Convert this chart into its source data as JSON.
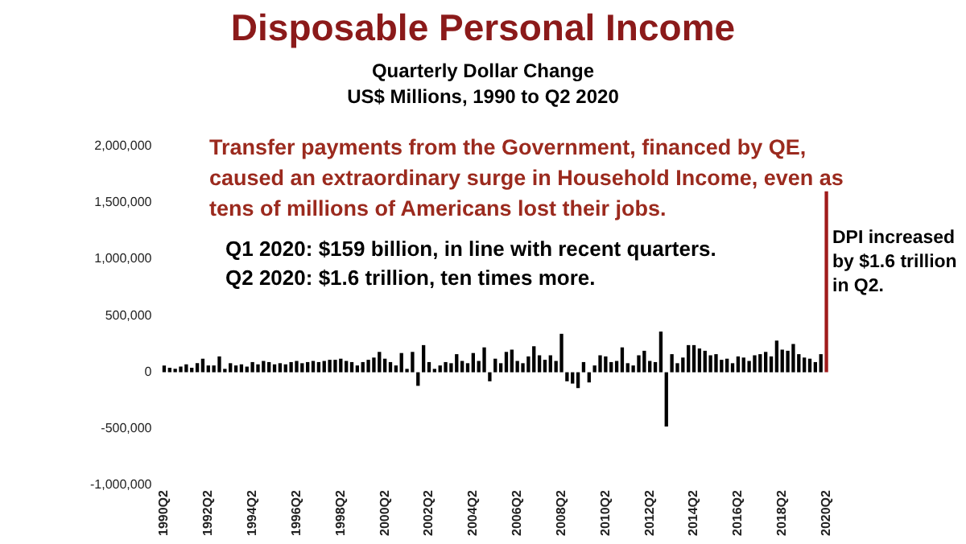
{
  "chart_data": {
    "type": "bar",
    "title": "Disposable Personal Income",
    "subtitle": "Quarterly Dollar Change\nUS$ Millions, 1990 to Q2 2020",
    "categories": [
      "1990Q2",
      null,
      null,
      null,
      null,
      null,
      null,
      null,
      "1992Q2",
      null,
      null,
      null,
      null,
      null,
      null,
      null,
      "1994Q2",
      null,
      null,
      null,
      null,
      null,
      null,
      null,
      "1996Q2",
      null,
      null,
      null,
      null,
      null,
      null,
      null,
      "1998Q2",
      null,
      null,
      null,
      null,
      null,
      null,
      null,
      "2000Q2",
      null,
      null,
      null,
      null,
      null,
      null,
      null,
      "2002Q2",
      null,
      null,
      null,
      null,
      null,
      null,
      null,
      "2004Q2",
      null,
      null,
      null,
      null,
      null,
      null,
      null,
      "2006Q2",
      null,
      null,
      null,
      null,
      null,
      null,
      null,
      "2008Q2",
      null,
      null,
      null,
      null,
      null,
      null,
      null,
      "2010Q2",
      null,
      null,
      null,
      null,
      null,
      null,
      null,
      "2012Q2",
      null,
      null,
      null,
      null,
      null,
      null,
      null,
      "2014Q2",
      null,
      null,
      null,
      null,
      null,
      null,
      null,
      "2016Q2",
      null,
      null,
      null,
      null,
      null,
      null,
      null,
      "2018Q2",
      null,
      null,
      null,
      null,
      null,
      null,
      null,
      "2020Q2"
    ],
    "values": [
      60000,
      40000,
      30000,
      50000,
      70000,
      40000,
      80000,
      120000,
      60000,
      60000,
      140000,
      30000,
      80000,
      60000,
      70000,
      50000,
      90000,
      70000,
      100000,
      90000,
      70000,
      80000,
      70000,
      90000,
      100000,
      80000,
      90000,
      100000,
      90000,
      100000,
      110000,
      110000,
      120000,
      100000,
      90000,
      60000,
      90000,
      110000,
      130000,
      180000,
      120000,
      90000,
      60000,
      170000,
      30000,
      180000,
      -120000,
      240000,
      90000,
      30000,
      60000,
      90000,
      80000,
      160000,
      100000,
      80000,
      170000,
      100000,
      220000,
      -80000,
      120000,
      80000,
      180000,
      200000,
      100000,
      80000,
      140000,
      230000,
      150000,
      110000,
      150000,
      100000,
      340000,
      -80000,
      -100000,
      -140000,
      90000,
      -90000,
      60000,
      150000,
      140000,
      90000,
      100000,
      220000,
      80000,
      60000,
      150000,
      190000,
      100000,
      90000,
      360000,
      -480000,
      160000,
      80000,
      130000,
      240000,
      240000,
      210000,
      190000,
      150000,
      160000,
      110000,
      120000,
      80000,
      140000,
      130000,
      100000,
      150000,
      160000,
      180000,
      140000,
      280000,
      200000,
      190000,
      250000,
      160000,
      130000,
      120000,
      90000,
      160000,
      1600000
    ],
    "colors": [
      "#000000",
      "#000000",
      "#000000",
      "#000000",
      "#000000",
      "#000000",
      "#000000",
      "#000000",
      "#000000",
      "#000000",
      "#000000",
      "#000000",
      "#000000",
      "#000000",
      "#000000",
      "#000000",
      "#000000",
      "#000000",
      "#000000",
      "#000000",
      "#000000",
      "#000000",
      "#000000",
      "#000000",
      "#000000",
      "#000000",
      "#000000",
      "#000000",
      "#000000",
      "#000000",
      "#000000",
      "#000000",
      "#000000",
      "#000000",
      "#000000",
      "#000000",
      "#000000",
      "#000000",
      "#000000",
      "#000000",
      "#000000",
      "#000000",
      "#000000",
      "#000000",
      "#000000",
      "#000000",
      "#000000",
      "#000000",
      "#000000",
      "#000000",
      "#000000",
      "#000000",
      "#000000",
      "#000000",
      "#000000",
      "#000000",
      "#000000",
      "#000000",
      "#000000",
      "#000000",
      "#000000",
      "#000000",
      "#000000",
      "#000000",
      "#000000",
      "#000000",
      "#000000",
      "#000000",
      "#000000",
      "#000000",
      "#000000",
      "#000000",
      "#000000",
      "#000000",
      "#000000",
      "#000000",
      "#000000",
      "#000000",
      "#000000",
      "#000000",
      "#000000",
      "#000000",
      "#000000",
      "#000000",
      "#000000",
      "#000000",
      "#000000",
      "#000000",
      "#000000",
      "#000000",
      "#000000",
      "#000000",
      "#000000",
      "#000000",
      "#000000",
      "#000000",
      "#000000",
      "#000000",
      "#000000",
      "#000000",
      "#000000",
      "#000000",
      "#000000",
      "#000000",
      "#000000",
      "#000000",
      "#000000",
      "#000000",
      "#000000",
      "#000000",
      "#000000",
      "#000000",
      "#000000",
      "#000000",
      "#000000",
      "#000000",
      "#000000",
      "#000000",
      "#000000",
      "#000000",
      "#a01c1c"
    ],
    "ylim": [
      -1000000,
      2000000
    ],
    "yticks": [
      {
        "value": -1000000,
        "label": "-1,000,000"
      },
      {
        "value": -500000,
        "label": "-500,000"
      },
      0,
      {
        "value": 500000,
        "label": "500,000"
      },
      {
        "value": 1000000,
        "label": "1,000,000"
      },
      {
        "value": 1500000,
        "label": "1,500,000"
      },
      {
        "value": 2000000,
        "label": "2,000,000"
      }
    ],
    "grid": false,
    "legend": false,
    "annotations": [
      "Transfer payments from the Government, financed by QE, caused an extraordinary surge in Household Income, even as tens of millions of Americans lost their jobs.",
      "Q1 2020: $159 billion, in line with recent quarters.\nQ2 2020: $1.6 trillion, ten times more.",
      "DPI increased by $1.6 trillion in Q2."
    ]
  }
}
